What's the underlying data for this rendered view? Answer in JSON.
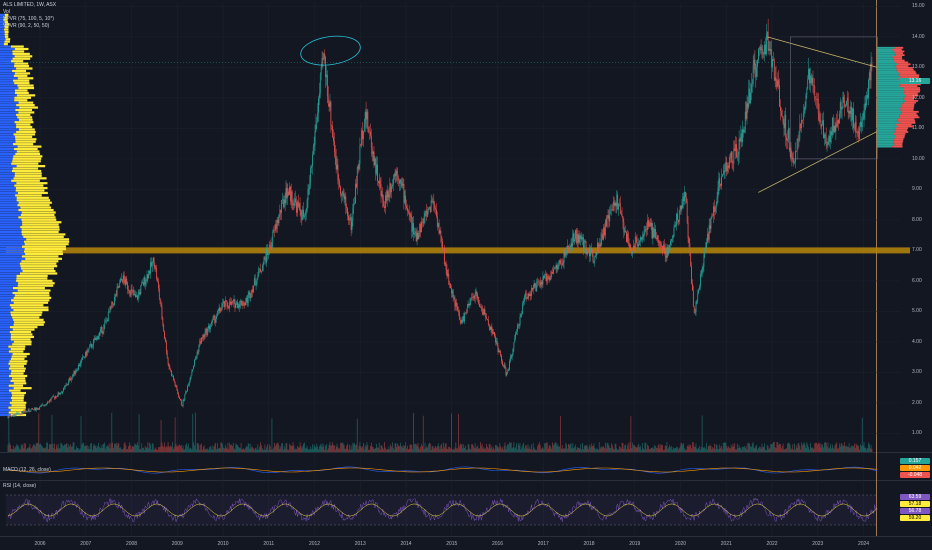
{
  "header": {
    "symbol_line": "ALS LIMITED, 1W, ASX",
    "vol_line": "Vol",
    "vpvr1_line": "VPVR (75, 100, 5, 10*)",
    "vpvr2_line": "VPVR (90, 2, 50, 50)"
  },
  "macd_label": "MACD (12, 26, close)",
  "rsi_label": "RSI (14, close)",
  "price_tags": {
    "last_price": "13.16",
    "macd_a": "0.157",
    "macd_b": "0.042",
    "macd_c": "-0.048",
    "rsi_a": "63.59",
    "rsi_b": "57.18",
    "rsi_c": "56.78",
    "rsi_d": "59.20"
  },
  "colors": {
    "background": "#131722",
    "up": "#26a69a",
    "down": "#ef5350",
    "volume_profile_blue": "#2962ff",
    "volume_profile_yellow": "#ffeb3b",
    "support_band": "#b8860b",
    "triangle_lines": "#c8b56a",
    "rsi_line": "#7e57c2",
    "macd_line": "#2962ff",
    "signal_line": "#ff9800"
  },
  "annotations": [
    "horizontal support band ~7.00",
    "symmetrical triangle 2021–2024",
    "circle around 2012 high ~13.60"
  ],
  "chart_data": {
    "type": "candlestick",
    "title": "ALS LIMITED, 1W, ASX",
    "x": [
      "2006",
      "2007",
      "2008",
      "2009",
      "2010",
      "2011",
      "2012",
      "2013",
      "2014",
      "2015",
      "2016",
      "2017",
      "2018",
      "2019",
      "2020",
      "2021",
      "2022",
      "2023",
      "2024"
    ],
    "y_ticks": [
      "15.00",
      "14.00",
      "13.00",
      "12.00",
      "11.00",
      "10.00",
      "9.00",
      "8.00",
      "7.00",
      "6.00",
      "5.00",
      "4.00",
      "3.00",
      "2.00",
      "1.00"
    ],
    "ylim": [
      0.5,
      15.2
    ],
    "series": [
      {
        "name": "ALS LIMITED",
        "approx_close_path": [
          {
            "x": 2005.3,
            "y": 1.55
          },
          {
            "x": 2006.0,
            "y": 1.85
          },
          {
            "x": 2006.5,
            "y": 2.4
          },
          {
            "x": 2007.0,
            "y": 3.6
          },
          {
            "x": 2007.4,
            "y": 4.5
          },
          {
            "x": 2007.8,
            "y": 6.1
          },
          {
            "x": 2008.1,
            "y": 5.4
          },
          {
            "x": 2008.5,
            "y": 6.7
          },
          {
            "x": 2008.8,
            "y": 3.3
          },
          {
            "x": 2009.1,
            "y": 1.9
          },
          {
            "x": 2009.5,
            "y": 4.0
          },
          {
            "x": 2010.0,
            "y": 5.2
          },
          {
            "x": 2010.5,
            "y": 5.3
          },
          {
            "x": 2011.0,
            "y": 7.0
          },
          {
            "x": 2011.4,
            "y": 9.0
          },
          {
            "x": 2011.8,
            "y": 8.0
          },
          {
            "x": 2012.2,
            "y": 13.4
          },
          {
            "x": 2012.5,
            "y": 9.5
          },
          {
            "x": 2012.8,
            "y": 7.8
          },
          {
            "x": 2013.1,
            "y": 11.6
          },
          {
            "x": 2013.5,
            "y": 8.5
          },
          {
            "x": 2013.8,
            "y": 9.7
          },
          {
            "x": 2014.2,
            "y": 7.4
          },
          {
            "x": 2014.6,
            "y": 8.7
          },
          {
            "x": 2014.9,
            "y": 6.2
          },
          {
            "x": 2015.2,
            "y": 4.6
          },
          {
            "x": 2015.5,
            "y": 5.6
          },
          {
            "x": 2015.9,
            "y": 4.3
          },
          {
            "x": 2016.2,
            "y": 2.9
          },
          {
            "x": 2016.6,
            "y": 5.5
          },
          {
            "x": 2017.0,
            "y": 6.0
          },
          {
            "x": 2017.4,
            "y": 6.6
          },
          {
            "x": 2017.7,
            "y": 7.5
          },
          {
            "x": 2018.1,
            "y": 6.8
          },
          {
            "x": 2018.6,
            "y": 8.7
          },
          {
            "x": 2018.9,
            "y": 7.0
          },
          {
            "x": 2019.3,
            "y": 7.8
          },
          {
            "x": 2019.7,
            "y": 6.9
          },
          {
            "x": 2020.1,
            "y": 8.9
          },
          {
            "x": 2020.3,
            "y": 4.9
          },
          {
            "x": 2020.6,
            "y": 7.5
          },
          {
            "x": 2020.9,
            "y": 9.5
          },
          {
            "x": 2021.3,
            "y": 10.4
          },
          {
            "x": 2021.6,
            "y": 12.9
          },
          {
            "x": 2021.9,
            "y": 13.9
          },
          {
            "x": 2022.3,
            "y": 11.0
          },
          {
            "x": 2022.5,
            "y": 9.9
          },
          {
            "x": 2022.8,
            "y": 12.7
          },
          {
            "x": 2023.2,
            "y": 10.6
          },
          {
            "x": 2023.6,
            "y": 12.0
          },
          {
            "x": 2023.9,
            "y": 10.8
          },
          {
            "x": 2024.2,
            "y": 13.16
          }
        ]
      }
    ],
    "horizontal_levels": [
      7.0
    ],
    "volume_profile_side": "left",
    "grid": true,
    "legend": "top-left"
  }
}
